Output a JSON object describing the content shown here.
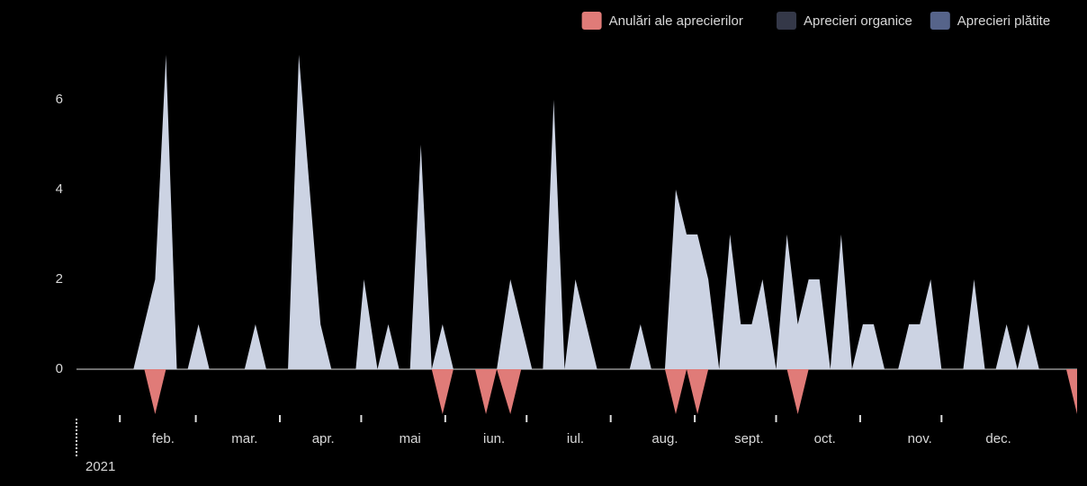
{
  "chart_data": {
    "type": "area",
    "legend_position": "top-right",
    "grid": false,
    "year_label": "2021",
    "xlim": [
      16,
      385
    ],
    "ylim": [
      -1.1,
      7.4
    ],
    "yticks": [
      0,
      2,
      4,
      6
    ],
    "xticks": [
      32,
      60,
      91,
      121,
      152,
      182,
      213,
      244,
      274,
      305,
      335
    ],
    "month_labels": [
      {
        "value": 48,
        "label": "feb."
      },
      {
        "value": 78,
        "label": "mar."
      },
      {
        "value": 107,
        "label": "apr."
      },
      {
        "value": 139,
        "label": "mai"
      },
      {
        "value": 170,
        "label": "iun."
      },
      {
        "value": 200,
        "label": "iul."
      },
      {
        "value": 233,
        "label": "aug."
      },
      {
        "value": 264,
        "label": "sept."
      },
      {
        "value": 292,
        "label": "oct."
      },
      {
        "value": 327,
        "label": "nov."
      },
      {
        "value": 356,
        "label": "dec."
      }
    ],
    "series": [
      {
        "name": "Anulări ale aprecierilor",
        "color": "#e07b78",
        "area_color": "#e07b78",
        "x": [
          41,
          45,
          49,
          147,
          151,
          155,
          163,
          167,
          171,
          176,
          180,
          233,
          237,
          241,
          245,
          249,
          278,
          282,
          286,
          381,
          385
        ],
        "values": [
          0,
          -1,
          0,
          0,
          -1,
          0,
          0,
          -1,
          0,
          -1,
          0,
          0,
          -1,
          0,
          -1,
          0,
          0,
          -1,
          0,
          0,
          -1
        ]
      },
      {
        "name": "Aprecieri organice",
        "color": "#343848"
      },
      {
        "name": "Aprecieri plătite",
        "color": "#56648a",
        "area_color": "#ccd3e3",
        "x": [
          16,
          37,
          45,
          49,
          53,
          57,
          61,
          65,
          78,
          82,
          86,
          94,
          98,
          106,
          110,
          119,
          122,
          127,
          131,
          135,
          139,
          143,
          147,
          151,
          155,
          171,
          176,
          184,
          188,
          192,
          196,
          200,
          208,
          220,
          224,
          228,
          233,
          237,
          241,
          245,
          249,
          253,
          257,
          261,
          265,
          269,
          274,
          278,
          282,
          286,
          290,
          294,
          298,
          302,
          306,
          310,
          314,
          319,
          323,
          327,
          331,
          335,
          343,
          347,
          351,
          355,
          359,
          363,
          367,
          371,
          385
        ],
        "values": [
          0,
          0,
          2,
          7,
          0,
          0,
          1,
          0,
          0,
          1,
          0,
          0,
          7,
          1,
          0,
          0,
          2,
          0,
          1,
          0,
          0,
          5,
          0,
          1,
          0,
          0,
          2,
          0,
          0,
          6,
          0,
          2,
          0,
          0,
          1,
          0,
          0,
          4,
          3,
          3,
          2,
          0,
          3,
          1,
          1,
          2,
          0,
          3,
          1,
          2,
          2,
          0,
          3,
          0,
          1,
          1,
          0,
          0,
          1,
          1,
          2,
          0,
          0,
          2,
          0,
          0,
          1,
          0,
          1,
          0,
          0
        ]
      }
    ]
  }
}
